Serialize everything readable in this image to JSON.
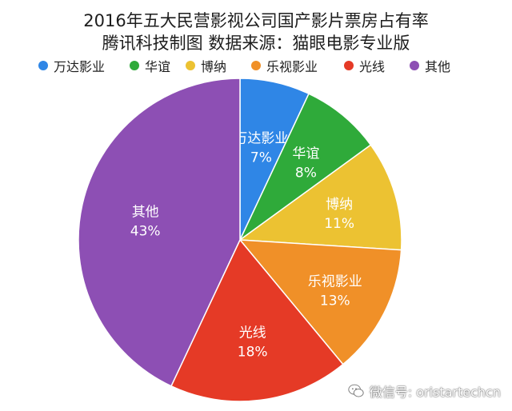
{
  "chart_data": {
    "type": "pie",
    "title": "2016年五大民营影视公司国产影片票房占有率",
    "subtitle": "腾讯科技制图      数据来源：猫眼电影专业版",
    "legend_position": "top",
    "categories": [
      "万达影业",
      "华谊",
      "博纳",
      "乐视影业",
      "光线",
      "其他"
    ],
    "values": [
      7,
      8,
      11,
      13,
      18,
      43
    ],
    "value_labels": [
      "7%",
      "8%",
      "11%",
      "13%",
      "18%",
      "43%"
    ],
    "colors": [
      "#2f86e6",
      "#2faa3a",
      "#ecc232",
      "#f09028",
      "#e53a26",
      "#8d4fb4"
    ]
  },
  "watermark": {
    "icon": "wechat-icon",
    "text": "微信号: oristartechcn"
  }
}
